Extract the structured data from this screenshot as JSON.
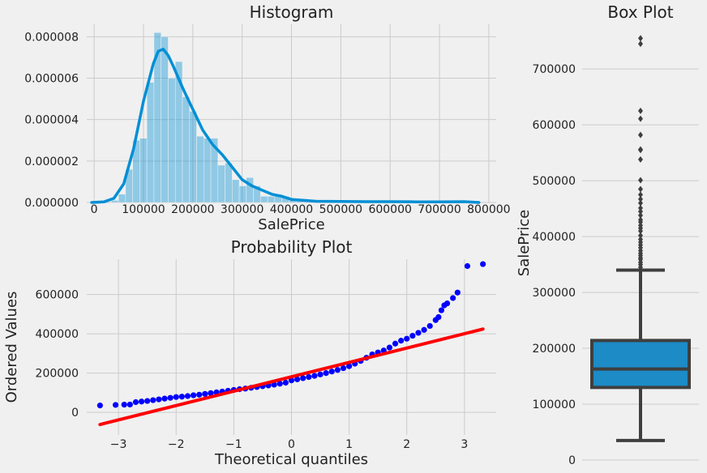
{
  "chart_data": [
    {
      "type": "bar",
      "title": "Histogram",
      "xlabel": "SalePrice",
      "ylabel": "",
      "xlim": [
        -15000,
        815000
      ],
      "ylim": [
        0,
        8.6e-06
      ],
      "xticks": [
        0,
        100000,
        200000,
        300000,
        400000,
        500000,
        600000,
        700000,
        800000
      ],
      "xtick_labels": [
        "0",
        "100000",
        "200000",
        "300000",
        "400000",
        "500000",
        "600000",
        "700000",
        "800000"
      ],
      "yticks": [
        0,
        2e-06,
        4e-06,
        6e-06,
        8e-06
      ],
      "ytick_labels": [
        "0.000000",
        "0.000002",
        "0.000004",
        "0.000006",
        "0.000008"
      ],
      "grid": true,
      "bin_start": 34900,
      "bin_width": 14400,
      "bin_density": [
        1e-07,
        4e-07,
        1.6e-06,
        3e-06,
        3.1e-06,
        5.8e-06,
        8.2e-06,
        8e-06,
        6e-06,
        6.8e-06,
        5.1e-06,
        4.4e-06,
        3.2e-06,
        3.1e-06,
        3.1e-06,
        1.8e-06,
        1.9e-06,
        1.1e-06,
        8e-07,
        1.2e-06,
        8e-07,
        3e-07,
        3e-07,
        4e-07,
        3e-07,
        2e-07,
        1e-07,
        1e-07,
        1e-07,
        1e-07,
        5e-08,
        3e-08,
        4e-08,
        1e-08,
        1e-08,
        2e-08,
        2e-08,
        1e-08,
        1e-08,
        1e-08,
        0.0,
        1e-08,
        1e-08,
        1e-08,
        1e-08,
        1e-08,
        1e-08,
        1e-08,
        1e-08,
        1e-08
      ],
      "kde": {
        "x": [
          -5000,
          20000,
          40000,
          60000,
          80000,
          100000,
          120000,
          130000,
          140000,
          150000,
          160000,
          180000,
          200000,
          220000,
          240000,
          260000,
          280000,
          300000,
          320000,
          340000,
          360000,
          380000,
          400000,
          450000,
          500000,
          550000,
          600000,
          650000,
          700000,
          750000,
          780000
        ],
        "y": [
          0.0,
          3e-08,
          2e-07,
          9e-07,
          2.6e-06,
          4.9e-06,
          6.7e-06,
          7.3e-06,
          7.4e-06,
          7.1e-06,
          6.6e-06,
          5.5e-06,
          4.5e-06,
          3.5e-06,
          2.8e-06,
          2.3e-06,
          1.7e-06,
          1.1e-06,
          8e-07,
          6e-07,
          4e-07,
          3e-07,
          1.5e-07,
          6e-08,
          5e-08,
          4e-08,
          4e-08,
          3e-08,
          3e-08,
          4e-08,
          0.0
        ]
      }
    },
    {
      "type": "scatter",
      "title": "Probability Plot",
      "xlabel": "Theoretical quantiles",
      "ylabel": "Ordered Values",
      "xlim": [
        -3.55,
        3.55
      ],
      "ylim": [
        -115000,
        780000
      ],
      "xticks": [
        -3,
        -2,
        -1,
        0,
        1,
        2,
        3
      ],
      "xtick_labels": [
        "−3",
        "−2",
        "−1",
        "0",
        "1",
        "2",
        "3"
      ],
      "yticks": [
        0,
        200000,
        400000,
        600000
      ],
      "ytick_labels": [
        "0",
        "200000",
        "400000",
        "600000"
      ],
      "grid": true,
      "points": {
        "x": [
          -3.32,
          -3.05,
          -2.9,
          -2.8,
          -2.7,
          -2.6,
          -2.5,
          -2.4,
          -2.3,
          -2.2,
          -2.1,
          -2.0,
          -1.9,
          -1.8,
          -1.7,
          -1.6,
          -1.5,
          -1.4,
          -1.3,
          -1.2,
          -1.1,
          -1.0,
          -0.9,
          -0.8,
          -0.7,
          -0.6,
          -0.5,
          -0.4,
          -0.3,
          -0.2,
          -0.1,
          0.0,
          0.1,
          0.2,
          0.3,
          0.4,
          0.5,
          0.6,
          0.7,
          0.8,
          0.9,
          1.0,
          1.1,
          1.2,
          1.3,
          1.4,
          1.5,
          1.6,
          1.7,
          1.8,
          1.9,
          2.0,
          2.1,
          2.2,
          2.3,
          2.4,
          2.5,
          2.55,
          2.6,
          2.65,
          2.7,
          2.8,
          2.88,
          3.05,
          3.32
        ],
        "y": [
          35000,
          37900,
          39300,
          40000,
          52000,
          55000,
          58000,
          62000,
          66000,
          70000,
          74000,
          78000,
          80000,
          83000,
          87000,
          90000,
          94000,
          98000,
          102000,
          106000,
          110000,
          114000,
          118000,
          121000,
          125000,
          129000,
          133000,
          137000,
          141000,
          146000,
          151000,
          163000,
          168000,
          174000,
          180000,
          186000,
          193000,
          200000,
          208000,
          216000,
          225000,
          235000,
          248000,
          262000,
          278000,
          295000,
          305000,
          315000,
          330000,
          350000,
          365000,
          375000,
          390000,
          405000,
          420000,
          440000,
          470000,
          485000,
          520000,
          545000,
          555000,
          582000,
          610000,
          745000,
          755000
        ]
      },
      "fit_line": {
        "x": [
          -3.32,
          3.32
        ],
        "y": [
          -62000,
          424000
        ]
      }
    },
    {
      "type": "box",
      "title": "Box Plot",
      "xlabel": "",
      "ylabel": "SalePrice",
      "ylim": [
        0,
        780000
      ],
      "yticks": [
        0,
        100000,
        200000,
        300000,
        400000,
        500000,
        600000,
        700000
      ],
      "ytick_labels": [
        "0",
        "100000",
        "200000",
        "300000",
        "400000",
        "500000",
        "600000",
        "700000"
      ],
      "grid": true,
      "whisker_low": 34900,
      "q1": 129975,
      "median": 163000,
      "q3": 214000,
      "whisker_high": 340000,
      "outliers": [
        345000,
        350000,
        354000,
        359000,
        362000,
        366000,
        370000,
        375000,
        380000,
        385000,
        390000,
        395000,
        402000,
        410000,
        415000,
        420000,
        426000,
        430000,
        438000,
        445000,
        451000,
        460000,
        467000,
        475000,
        485000,
        501000,
        538000,
        555000,
        556000,
        582000,
        611000,
        625000,
        745000,
        755000
      ],
      "box_color": "#1c8bc6"
    }
  ]
}
